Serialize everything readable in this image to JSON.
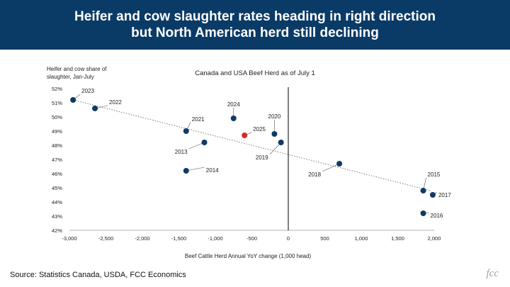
{
  "header": {
    "title_line1": "Heifer and cow slaughter rates heading in right direction",
    "title_line2": "but North American herd still declining"
  },
  "footer": {
    "source": "Source: Statistics Canada, USDA, FCC Economics",
    "logo_text": "fcc"
  },
  "colors": {
    "banner": "#0a3a66",
    "point": "#0d3b66",
    "highlight": "#d62828",
    "trendline": "#7a7a7a"
  },
  "chart_data": {
    "type": "scatter",
    "title": "Canada and USA Beef Herd as of July 1",
    "ylabel_line1": "Heifer and cow share of",
    "ylabel_line2": "slaughter, Jan-July",
    "xlabel": "Beef Cattle Herd Annual YoY change (1,000 head)",
    "xlim": [
      -3000,
      2000
    ],
    "ylim": [
      42,
      52
    ],
    "x_ticks": [
      -3000,
      -2500,
      -2000,
      -1500,
      -1000,
      -500,
      0,
      500,
      1000,
      1500,
      2000
    ],
    "x_tick_labels": [
      "-3,000",
      "-2,500",
      "-2,000",
      "-1,500",
      "-1,000",
      "-500",
      "0",
      "500",
      "1,000",
      "1,500",
      "2,000"
    ],
    "y_ticks": [
      42,
      43,
      44,
      45,
      46,
      47,
      48,
      49,
      50,
      51,
      52
    ],
    "y_tick_labels": [
      "42%",
      "43%",
      "44%",
      "45%",
      "46%",
      "47%",
      "48%",
      "49%",
      "50%",
      "51%",
      "52%"
    ],
    "trendline": {
      "x": [
        -2950,
        1950
      ],
      "y": [
        51.2,
        44.8
      ]
    },
    "points": [
      {
        "label": "2023",
        "x": -2950,
        "y": 51.2,
        "highlight": false
      },
      {
        "label": "2022",
        "x": -2650,
        "y": 50.6,
        "highlight": false
      },
      {
        "label": "2021",
        "x": -1400,
        "y": 49.0,
        "highlight": false
      },
      {
        "label": "2013",
        "x": -1150,
        "y": 48.2,
        "highlight": false
      },
      {
        "label": "2014",
        "x": -1400,
        "y": 46.2,
        "highlight": false
      },
      {
        "label": "2024",
        "x": -750,
        "y": 49.9,
        "highlight": false
      },
      {
        "label": "2025",
        "x": -600,
        "y": 48.7,
        "highlight": true
      },
      {
        "label": "2020",
        "x": -190,
        "y": 48.8,
        "highlight": false
      },
      {
        "label": "2019",
        "x": -100,
        "y": 48.2,
        "highlight": false
      },
      {
        "label": "2018",
        "x": 700,
        "y": 46.7,
        "highlight": false
      },
      {
        "label": "2015",
        "x": 1850,
        "y": 44.8,
        "highlight": false
      },
      {
        "label": "2017",
        "x": 1980,
        "y": 44.5,
        "highlight": false
      },
      {
        "label": "2016",
        "x": 1850,
        "y": 43.2,
        "highlight": false
      }
    ]
  }
}
